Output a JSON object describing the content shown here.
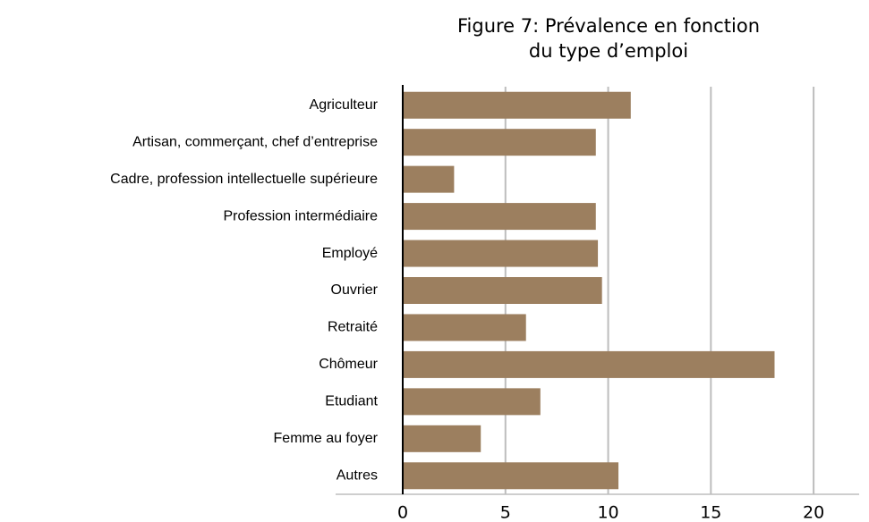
{
  "chart_data": {
    "type": "barh",
    "title": [
      "Figure 7: Prévalence en fonction",
      "du type d’emploi"
    ],
    "categories": [
      "Agriculteur",
      "Artisan, commerçant, chef d’entreprise",
      "Cadre, profession intellectuelle supérieure",
      "Profession intermédiaire",
      "Employé",
      "Ouvrier",
      "Retraité",
      "Chômeur",
      "Etudiant",
      "Femme au foyer",
      "Autres"
    ],
    "values": [
      11.1,
      9.4,
      2.5,
      9.4,
      9.5,
      9.7,
      6.0,
      18.1,
      6.7,
      3.8,
      10.5
    ],
    "color": "#9c7f5f",
    "xlim": [
      0,
      22
    ],
    "xticks": [
      0,
      5,
      10,
      15,
      20
    ],
    "grid": true
  }
}
